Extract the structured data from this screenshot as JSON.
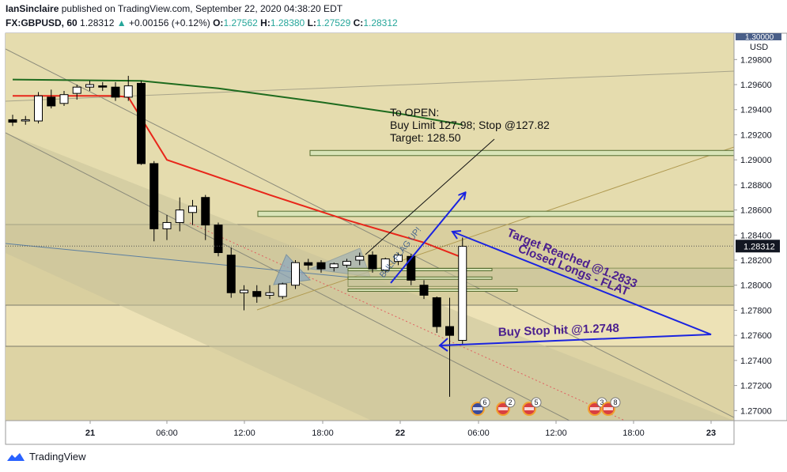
{
  "header": {
    "author": "IanSinclaire",
    "published_text": "published on TradingView.com, September 22, 2020 04:38:20 EDT",
    "symbol": "FX:GBPUSD, 60",
    "last": "1.28312",
    "change_arrow": "▲",
    "change": "+0.00156 (+0.12%)",
    "o_label": "O:",
    "o_value": "1.27562",
    "h_label": "H:",
    "h_value": "1.28380",
    "l_label": "L:",
    "l_value": "1.27529",
    "c_label": "C:",
    "c_value": "1.28312"
  },
  "footer": {
    "brand": "TradingView",
    "logo_icon": "tradingview-logo-icon"
  },
  "colors": {
    "up": "#ffffff",
    "down": "#000000",
    "bg": "#ede2b6",
    "ma_green": "#1e6b1e",
    "ma_red": "#e8261a",
    "arrow_blue": "#1a23e0",
    "text_purple": "#4b1f8f",
    "zone": "#d8e4b8"
  },
  "chart_data": {
    "type": "candlestick",
    "symbol": "FX:GBPUSD",
    "timeframe": "60",
    "currency": "USD",
    "y_tick_labels": [
      "1.29800",
      "1.29600",
      "1.29400",
      "1.29200",
      "1.29000",
      "1.28800",
      "1.28600",
      "1.28400",
      "1.28200",
      "1.28000",
      "1.27800",
      "1.27600",
      "1.27400",
      "1.27200",
      "1.27000"
    ],
    "y_top_label": "1.30000",
    "last_price_label": "1.28312",
    "ylim": [
      1.2692,
      1.3001
    ],
    "x_tick_labels": [
      "21",
      "06:00",
      "12:00",
      "18:00",
      "22",
      "06:00",
      "12:00",
      "18:00",
      "23"
    ],
    "candles": [
      {
        "o": 1.2932,
        "h": 1.2936,
        "l": 1.2927,
        "c": 1.293
      },
      {
        "o": 1.2931,
        "h": 1.2935,
        "l": 1.2928,
        "c": 1.2932
      },
      {
        "o": 1.2931,
        "h": 1.2954,
        "l": 1.2929,
        "c": 1.2951
      },
      {
        "o": 1.295,
        "h": 1.2956,
        "l": 1.2941,
        "c": 1.2943
      },
      {
        "o": 1.2945,
        "h": 1.2955,
        "l": 1.2943,
        "c": 1.2952
      },
      {
        "o": 1.2953,
        "h": 1.296,
        "l": 1.2948,
        "c": 1.2958
      },
      {
        "o": 1.2958,
        "h": 1.2963,
        "l": 1.2955,
        "c": 1.296
      },
      {
        "o": 1.2959,
        "h": 1.2962,
        "l": 1.2955,
        "c": 1.2958
      },
      {
        "o": 1.2958,
        "h": 1.2962,
        "l": 1.2947,
        "c": 1.295
      },
      {
        "o": 1.295,
        "h": 1.2967,
        "l": 1.2947,
        "c": 1.2959
      },
      {
        "o": 1.2961,
        "h": 1.2963,
        "l": 1.2896,
        "c": 1.2897
      },
      {
        "o": 1.2897,
        "h": 1.2899,
        "l": 1.2835,
        "c": 1.2845
      },
      {
        "o": 1.2845,
        "h": 1.2856,
        "l": 1.2836,
        "c": 1.285
      },
      {
        "o": 1.285,
        "h": 1.287,
        "l": 1.2843,
        "c": 1.286
      },
      {
        "o": 1.2858,
        "h": 1.2868,
        "l": 1.2848,
        "c": 1.2863
      },
      {
        "o": 1.287,
        "h": 1.2872,
        "l": 1.2836,
        "c": 1.2848
      },
      {
        "o": 1.2848,
        "h": 1.285,
        "l": 1.2823,
        "c": 1.2826
      },
      {
        "o": 1.2824,
        "h": 1.283,
        "l": 1.279,
        "c": 1.2794
      },
      {
        "o": 1.2794,
        "h": 1.28,
        "l": 1.278,
        "c": 1.2796
      },
      {
        "o": 1.2795,
        "h": 1.28,
        "l": 1.2786,
        "c": 1.2791
      },
      {
        "o": 1.2792,
        "h": 1.28,
        "l": 1.2789,
        "c": 1.2794
      },
      {
        "o": 1.2791,
        "h": 1.2802,
        "l": 1.2789,
        "c": 1.2801
      },
      {
        "o": 1.28,
        "h": 1.282,
        "l": 1.2797,
        "c": 1.2818
      },
      {
        "o": 1.2818,
        "h": 1.2821,
        "l": 1.2812,
        "c": 1.2816
      },
      {
        "o": 1.2818,
        "h": 1.282,
        "l": 1.281,
        "c": 1.2813
      },
      {
        "o": 1.2814,
        "h": 1.2818,
        "l": 1.2811,
        "c": 1.2817
      },
      {
        "o": 1.2816,
        "h": 1.2821,
        "l": 1.2814,
        "c": 1.2819
      },
      {
        "o": 1.282,
        "h": 1.2826,
        "l": 1.2816,
        "c": 1.2823
      },
      {
        "o": 1.2824,
        "h": 1.2827,
        "l": 1.281,
        "c": 1.2813
      },
      {
        "o": 1.2812,
        "h": 1.2822,
        "l": 1.281,
        "c": 1.2821
      },
      {
        "o": 1.2819,
        "h": 1.2826,
        "l": 1.2816,
        "c": 1.2824
      },
      {
        "o": 1.2823,
        "h": 1.2825,
        "l": 1.28,
        "c": 1.2804
      },
      {
        "o": 1.28,
        "h": 1.2804,
        "l": 1.2789,
        "c": 1.2792
      },
      {
        "o": 1.279,
        "h": 1.2791,
        "l": 1.2762,
        "c": 1.2767
      },
      {
        "o": 1.2767,
        "h": 1.279,
        "l": 1.2711,
        "c": 1.276
      },
      {
        "o": 1.2756,
        "h": 1.2838,
        "l": 1.2753,
        "c": 1.2831
      }
    ],
    "moving_averages": [
      {
        "name": "green",
        "points": [
          [
            0,
            1.2964
          ],
          [
            10,
            1.2963
          ],
          [
            16,
            1.2957
          ],
          [
            24,
            1.2946
          ],
          [
            30,
            1.2937
          ],
          [
            35,
            1.2928
          ]
        ]
      },
      {
        "name": "red",
        "points": [
          [
            0,
            1.2951
          ],
          [
            8,
            1.2951
          ],
          [
            9,
            1.295
          ],
          [
            12,
            1.29
          ],
          [
            20,
            1.2872
          ],
          [
            26,
            1.2852
          ],
          [
            32,
            1.2834
          ],
          [
            35,
            1.2822
          ]
        ]
      }
    ],
    "horizontal_zones": [
      {
        "from": 1.29034,
        "to": 1.29075
      },
      {
        "from": 1.28548,
        "to": 1.2859
      },
      {
        "from": 1.2799,
        "to": 1.28136
      }
    ],
    "annotations": {
      "to_open_title": "To OPEN:",
      "to_open_line1": "Buy Limit 127.98; Stop @127.82",
      "to_open_line2": "Target: 128.50",
      "target_text_1": "Target Reached @1.2833",
      "target_text_2": "Closed Longs - FLAT",
      "buy_stop_text": "Buy Stop hit @1.2748",
      "pattern_text": "BULLFLAG UP!"
    },
    "events": [
      {
        "flag": "uk",
        "count": "6"
      },
      {
        "flag": "us",
        "count": "2"
      },
      {
        "flag": "us",
        "count": "5"
      },
      {
        "flag": "us",
        "count": "3"
      },
      {
        "flag": "us",
        "count": "8"
      }
    ],
    "grid": false
  }
}
